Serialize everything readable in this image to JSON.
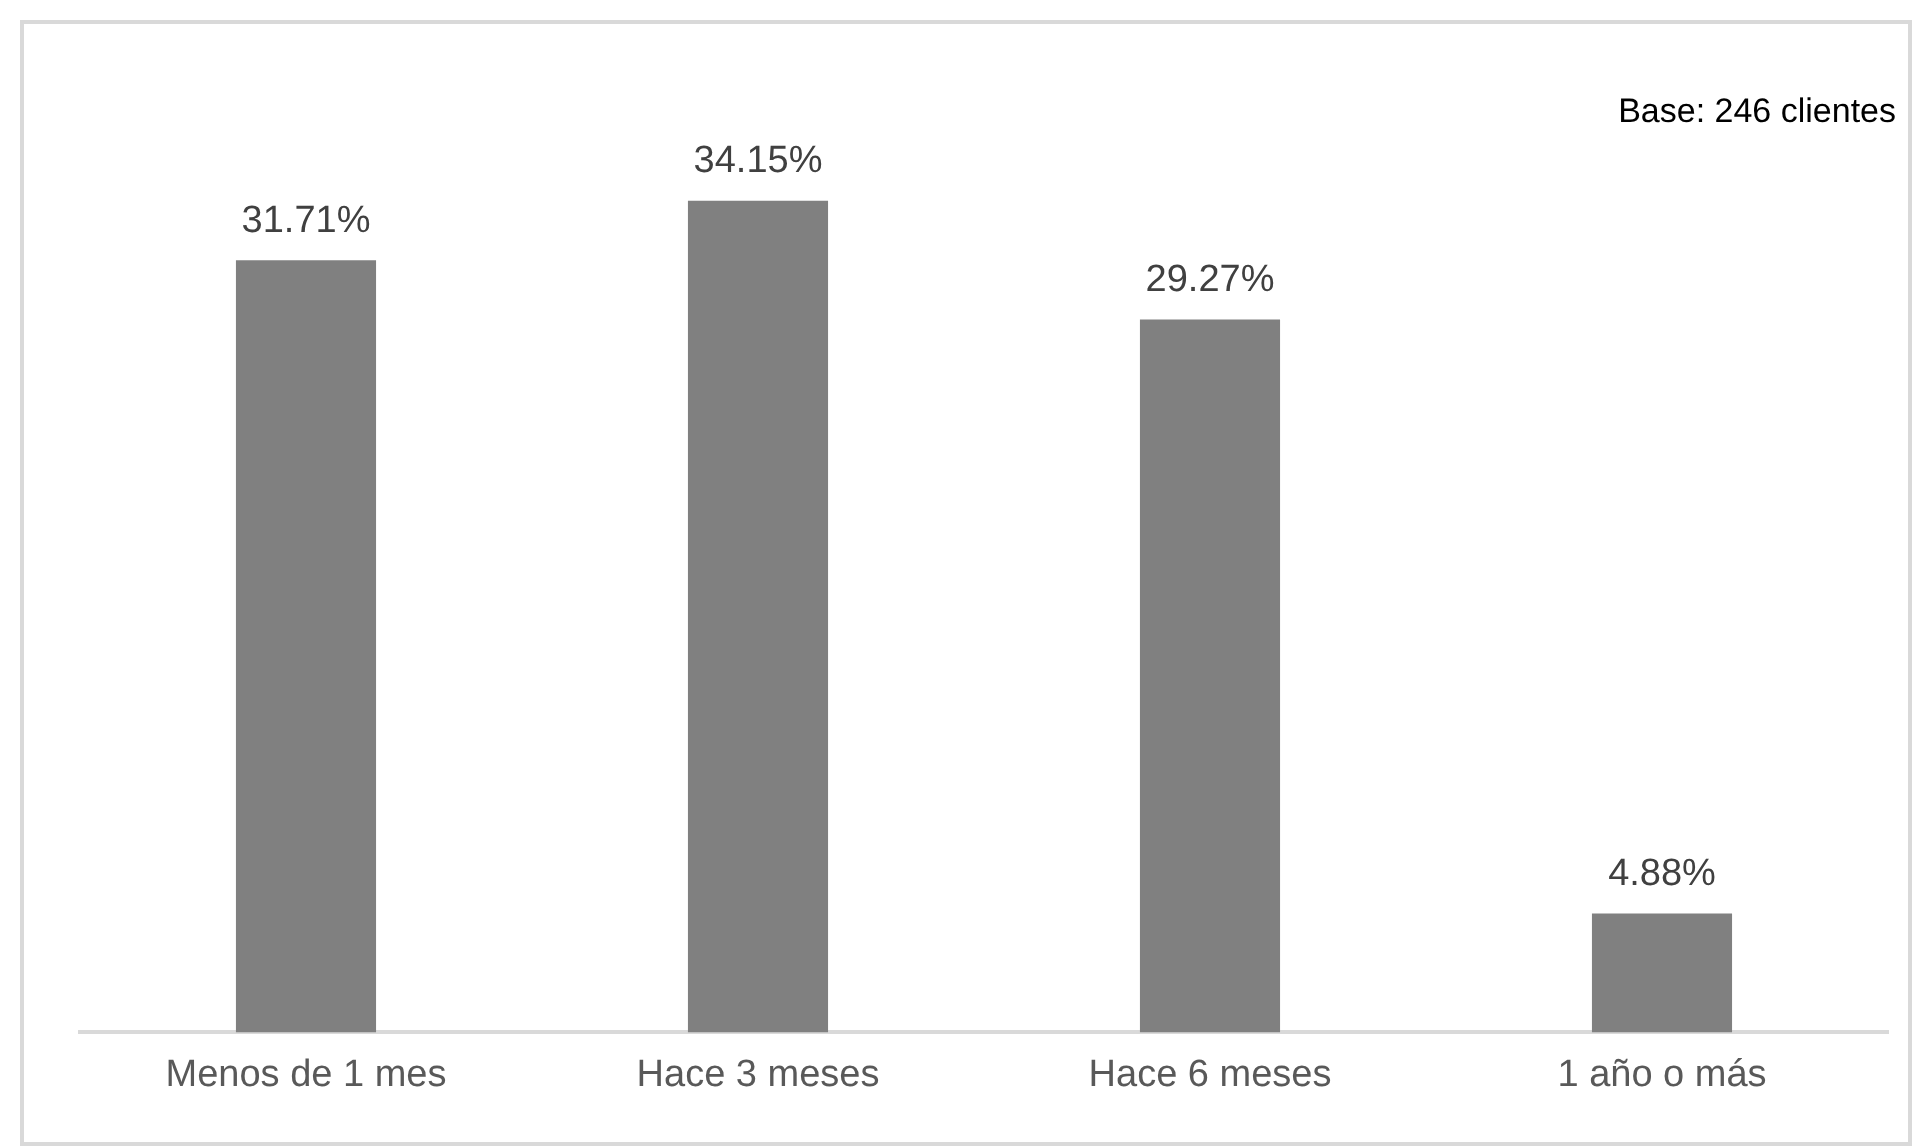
{
  "chart_data": {
    "type": "bar",
    "categories": [
      "Menos de 1 mes",
      "Hace 3 meses",
      "Hace 6 meses",
      "1 año o más"
    ],
    "values": [
      31.71,
      34.15,
      29.27,
      4.88
    ],
    "value_labels": [
      "31.71%",
      "34.15%",
      "29.27%",
      "4.88%"
    ],
    "color": "#808080",
    "grid": false,
    "legend": false,
    "annotations": [
      "Base: 246 clientes"
    ]
  }
}
